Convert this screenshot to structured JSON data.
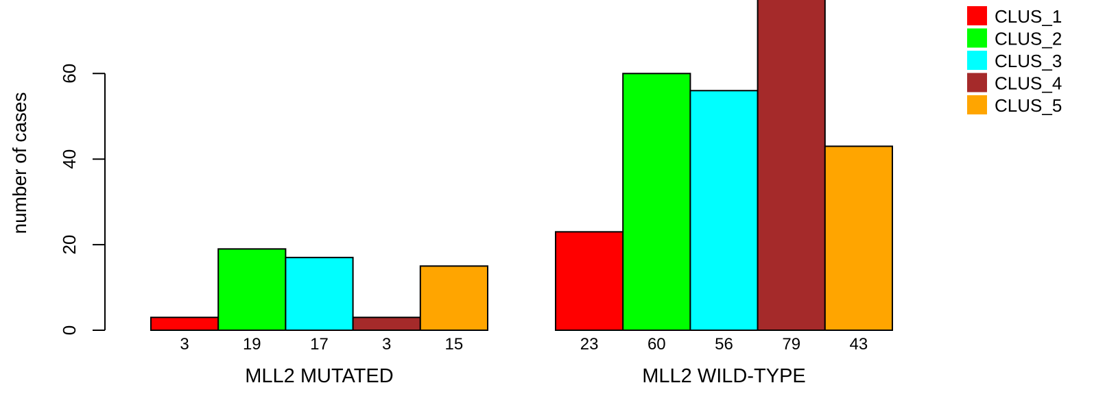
{
  "chart_data": {
    "type": "bar",
    "ylabel": "number of cases",
    "ylim": [
      0,
      80
    ],
    "yticks": [
      0,
      20,
      40,
      60
    ],
    "grid": false,
    "legend_position": "top-right",
    "groups": [
      "MLL2 MUTATED",
      "MLL2 WILD-TYPE"
    ],
    "series": [
      {
        "name": "CLUS_1",
        "color": "#FF0000",
        "values": [
          3,
          23
        ]
      },
      {
        "name": "CLUS_2",
        "color": "#00FF00",
        "values": [
          19,
          60
        ]
      },
      {
        "name": "CLUS_3",
        "color": "#00FFFF",
        "values": [
          17,
          56
        ]
      },
      {
        "name": "CLUS_4",
        "color": "#A52A2A",
        "values": [
          3,
          79
        ]
      },
      {
        "name": "CLUS_5",
        "color": "#FFA500",
        "values": [
          15,
          43
        ]
      }
    ]
  }
}
